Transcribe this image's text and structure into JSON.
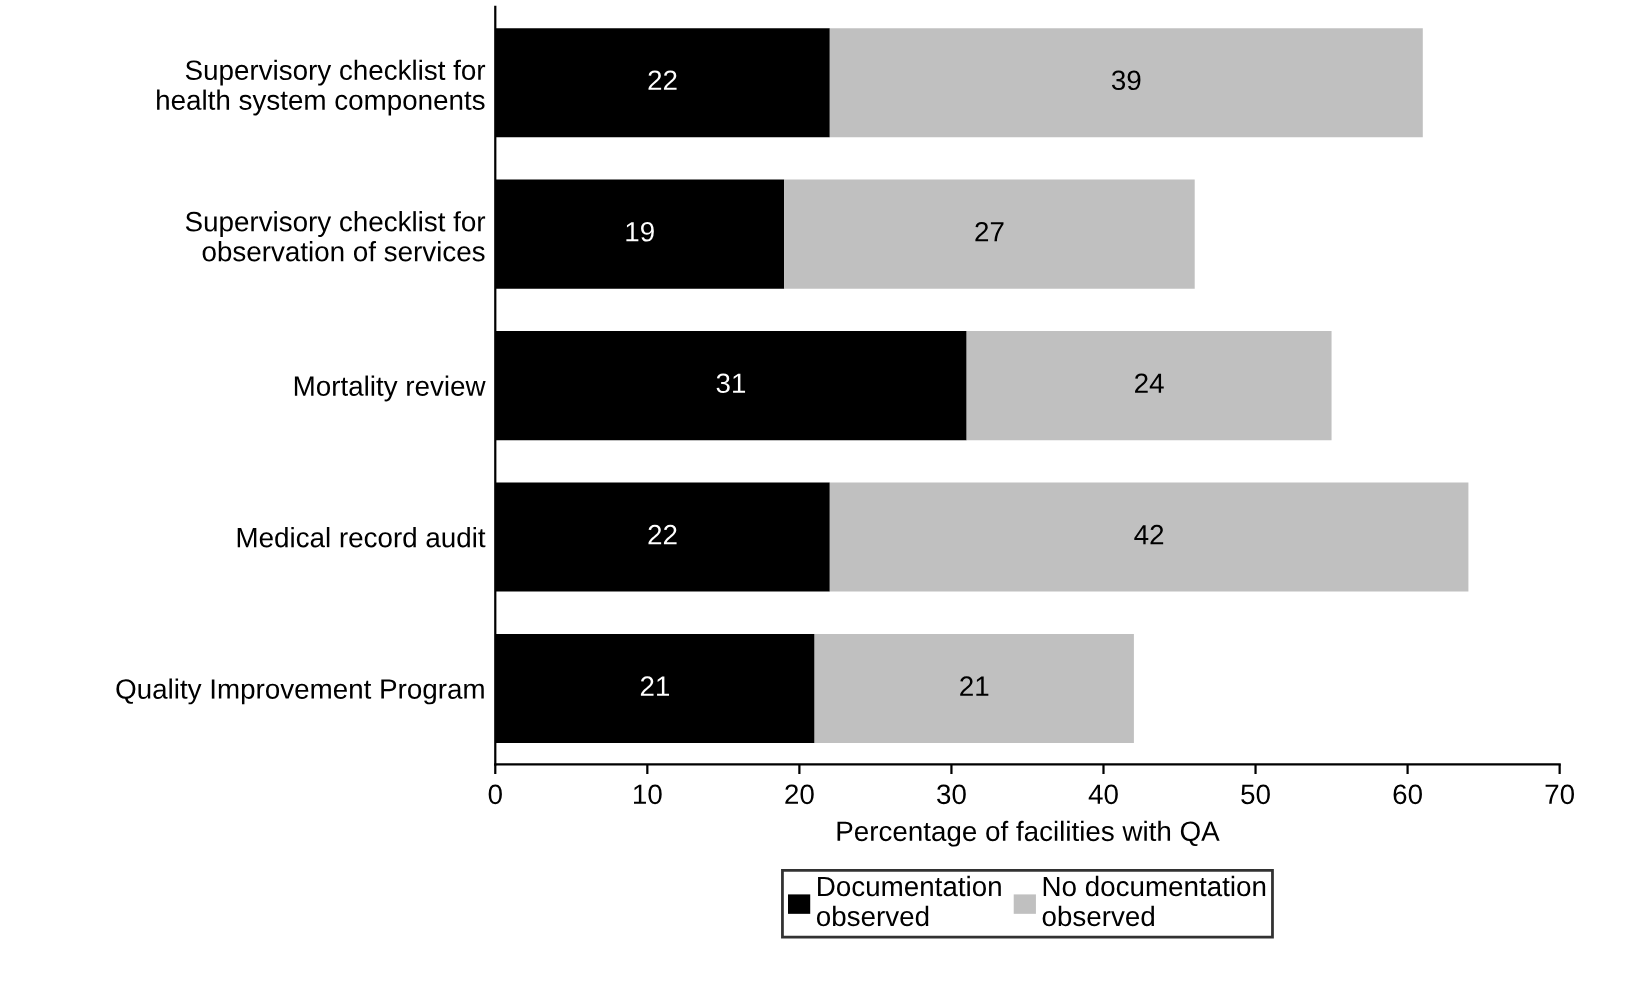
{
  "chart_data": {
    "type": "bar",
    "orientation": "horizontal",
    "stacked": true,
    "xlabel": "Percentage of facilities with QA",
    "categories": [
      "Supervisory checklist for\nhealth system components",
      "Supervisory checklist for\nobservation of services",
      "Mortality review",
      "Medical record audit",
      "Quality Improvement Program"
    ],
    "series": [
      {
        "name": "Documentation\nobserved",
        "color": "#000000",
        "values": [
          22,
          19,
          31,
          22,
          21
        ]
      },
      {
        "name": "No documentation\nobserved",
        "color": "#c0c0c0",
        "values": [
          39,
          27,
          24,
          42,
          21
        ]
      }
    ],
    "xlim": [
      0,
      70
    ],
    "xticks": [
      0,
      10,
      20,
      30,
      40,
      50,
      60,
      70
    ],
    "data_labels": true,
    "grid": false,
    "legend": "bottom"
  }
}
